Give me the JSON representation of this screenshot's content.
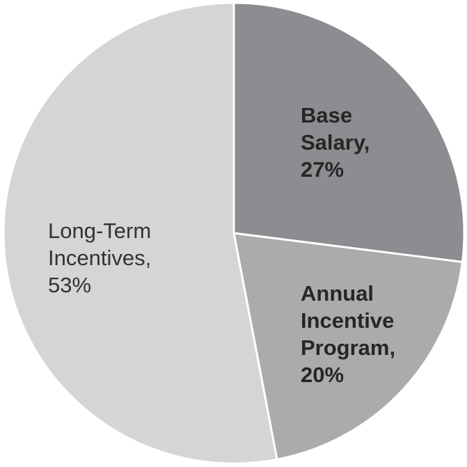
{
  "chart_data": {
    "type": "pie",
    "title": "",
    "start_angle_deg": 0,
    "direction": "clockwise",
    "legend": "none",
    "background_color": "#ffffff",
    "separator_color": "#ffffff",
    "label_text_color": "#262626",
    "categories": [
      "Base Salary",
      "Annual Incentive Program",
      "Long-Term Incentives"
    ],
    "values": [
      27,
      20,
      53
    ],
    "unit": "%",
    "slices": [
      {
        "label": "Base Salary",
        "value": 27,
        "display": "Base Salary, 27%",
        "color": "#8b8d90",
        "label_lines": [
          "Base",
          "Salary,",
          "27%"
        ]
      },
      {
        "label": "Annual Incentive Program",
        "value": 20,
        "display": "Annual Incentive Program, 20%",
        "color": "#a9abad",
        "label_lines": [
          "Annual",
          "Incentive",
          "Program,",
          "20%"
        ]
      },
      {
        "label": "Long-Term Incentives",
        "value": 53,
        "display": "Long-Term Incentives, 53%",
        "color": "#d5d5d7",
        "label_lines": [
          "Long-Term",
          "Incentives,",
          "53%"
        ]
      }
    ]
  }
}
